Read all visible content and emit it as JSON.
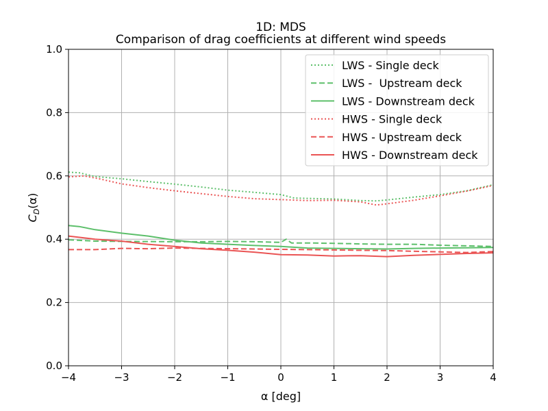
{
  "colors": {
    "lws": "#5cbf6a",
    "hws": "#ea5353",
    "grid": "#b0b0b0",
    "axis": "#000000"
  },
  "chart_data": {
    "type": "line",
    "title": "1D: MDS",
    "subtitle": "Comparison of drag coefficients at different wind speeds",
    "xlabel": "α [deg]",
    "ylabel": "C_D(α)",
    "ylabel_main": "C",
    "ylabel_sub": "D",
    "ylabel_tail": "(α)",
    "xlim": [
      -4,
      4
    ],
    "ylim": [
      0,
      1
    ],
    "xticks": [
      -4,
      -3,
      -2,
      -1,
      0,
      1,
      2,
      3,
      4
    ],
    "xtick_labels": [
      "−4",
      "−3",
      "−2",
      "−1",
      "0",
      "1",
      "2",
      "3",
      "4"
    ],
    "yticks": [
      0,
      0.2,
      0.4,
      0.6,
      0.8,
      1.0
    ],
    "ytick_labels": [
      "0.0",
      "0.2",
      "0.4",
      "0.6",
      "0.8",
      "1.0"
    ],
    "grid": true,
    "legend_position": "top-right",
    "series": [
      {
        "name": "LWS - Single deck",
        "style": "dotted",
        "color": "#5cbf6a",
        "points": [
          [
            -4,
            0.612
          ],
          [
            -3.8,
            0.61
          ],
          [
            -3.5,
            0.598
          ],
          [
            -3,
            0.591
          ],
          [
            -2.5,
            0.582
          ],
          [
            -2,
            0.574
          ],
          [
            -1.5,
            0.565
          ],
          [
            -1,
            0.555
          ],
          [
            -0.5,
            0.548
          ],
          [
            0,
            0.541
          ],
          [
            0.25,
            0.53
          ],
          [
            0.5,
            0.529
          ],
          [
            1,
            0.527
          ],
          [
            1.5,
            0.522
          ],
          [
            1.8,
            0.521
          ],
          [
            2,
            0.524
          ],
          [
            2.5,
            0.533
          ],
          [
            3,
            0.541
          ],
          [
            3.5,
            0.553
          ],
          [
            4,
            0.572
          ]
        ]
      },
      {
        "name": "LWS -  Upstream deck",
        "style": "dashed",
        "color": "#5cbf6a",
        "points": [
          [
            -4,
            0.398
          ],
          [
            -3.5,
            0.394
          ],
          [
            -3,
            0.393
          ],
          [
            -2,
            0.392
          ],
          [
            -1.5,
            0.392
          ],
          [
            -1,
            0.393
          ],
          [
            -0.5,
            0.392
          ],
          [
            0,
            0.39
          ],
          [
            0.1,
            0.4
          ],
          [
            0.2,
            0.388
          ],
          [
            0.5,
            0.388
          ],
          [
            1,
            0.387
          ],
          [
            1.5,
            0.385
          ],
          [
            2,
            0.384
          ],
          [
            2.5,
            0.384
          ],
          [
            3,
            0.381
          ],
          [
            3.5,
            0.379
          ],
          [
            4,
            0.377
          ]
        ]
      },
      {
        "name": "LWS - Downstream deck",
        "style": "solid",
        "color": "#5cbf6a",
        "points": [
          [
            -4,
            0.443
          ],
          [
            -3.8,
            0.44
          ],
          [
            -3.5,
            0.43
          ],
          [
            -3,
            0.419
          ],
          [
            -2.5,
            0.41
          ],
          [
            -2,
            0.397
          ],
          [
            -1.5,
            0.388
          ],
          [
            -1,
            0.384
          ],
          [
            -0.5,
            0.38
          ],
          [
            0,
            0.377
          ],
          [
            0.5,
            0.372
          ],
          [
            1,
            0.371
          ],
          [
            1.5,
            0.37
          ],
          [
            2,
            0.369
          ],
          [
            2.5,
            0.371
          ],
          [
            3,
            0.372
          ],
          [
            3.5,
            0.373
          ],
          [
            4,
            0.374
          ]
        ]
      },
      {
        "name": "HWS - Single deck",
        "style": "dotted",
        "color": "#ea5353",
        "points": [
          [
            -4,
            0.597
          ],
          [
            -3.7,
            0.6
          ],
          [
            -3.4,
            0.59
          ],
          [
            -3,
            0.575
          ],
          [
            -2.5,
            0.563
          ],
          [
            -2,
            0.553
          ],
          [
            -1.5,
            0.544
          ],
          [
            -1,
            0.535
          ],
          [
            -0.5,
            0.528
          ],
          [
            0,
            0.525
          ],
          [
            0.5,
            0.522
          ],
          [
            1,
            0.523
          ],
          [
            1.5,
            0.518
          ],
          [
            1.8,
            0.508
          ],
          [
            2,
            0.512
          ],
          [
            2.5,
            0.523
          ],
          [
            3,
            0.537
          ],
          [
            3.5,
            0.552
          ],
          [
            4,
            0.57
          ]
        ]
      },
      {
        "name": "HWS - Upstream deck",
        "style": "dashed",
        "color": "#ea5353",
        "points": [
          [
            -4,
            0.367
          ],
          [
            -3.5,
            0.367
          ],
          [
            -3,
            0.371
          ],
          [
            -2.5,
            0.37
          ],
          [
            -2,
            0.372
          ],
          [
            -1.5,
            0.371
          ],
          [
            -1,
            0.37
          ],
          [
            -0.5,
            0.369
          ],
          [
            0,
            0.368
          ],
          [
            0.5,
            0.367
          ],
          [
            1,
            0.366
          ],
          [
            1.5,
            0.365
          ],
          [
            2,
            0.364
          ],
          [
            2.5,
            0.362
          ],
          [
            3,
            0.36
          ],
          [
            3.5,
            0.358
          ],
          [
            4,
            0.361
          ]
        ]
      },
      {
        "name": "HWS - Downstream deck",
        "style": "solid",
        "color": "#ea5353",
        "points": [
          [
            -4,
            0.41
          ],
          [
            -3.5,
            0.4
          ],
          [
            -3,
            0.394
          ],
          [
            -2.5,
            0.384
          ],
          [
            -2,
            0.377
          ],
          [
            -1.5,
            0.37
          ],
          [
            -1,
            0.365
          ],
          [
            -0.5,
            0.359
          ],
          [
            0,
            0.351
          ],
          [
            0.5,
            0.35
          ],
          [
            1,
            0.347
          ],
          [
            1.5,
            0.348
          ],
          [
            2,
            0.345
          ],
          [
            2.5,
            0.349
          ],
          [
            3,
            0.352
          ],
          [
            3.5,
            0.355
          ],
          [
            4,
            0.357
          ]
        ]
      }
    ]
  }
}
